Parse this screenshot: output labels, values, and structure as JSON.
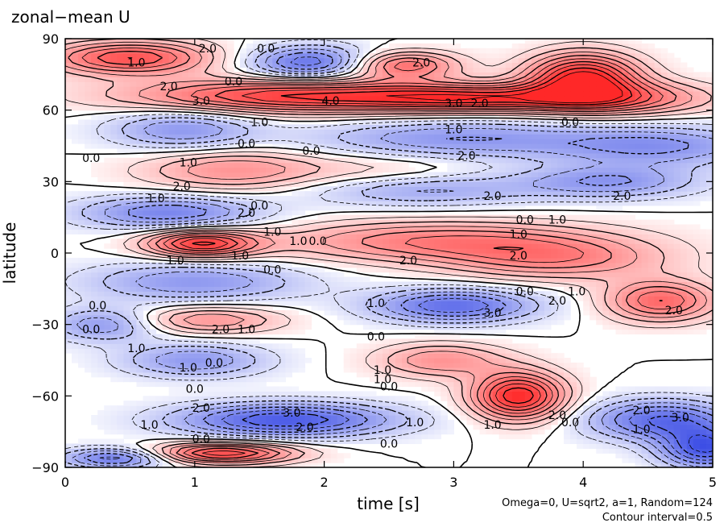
{
  "chart_data": {
    "type": "heatmap",
    "title": "zonal−mean U",
    "xlabel": "time [s]",
    "ylabel": "latitude",
    "xlim": [
      0,
      5
    ],
    "ylim": [
      -90,
      90
    ],
    "x_ticks": [
      0,
      1,
      2,
      3,
      4,
      5
    ],
    "x_tick_labels": [
      "0",
      "1",
      "2",
      "3",
      "4",
      "5"
    ],
    "y_ticks": [
      90,
      60,
      30,
      0,
      -30,
      -60,
      -90
    ],
    "y_tick_labels": [
      "90",
      "60",
      "30",
      "0",
      "−30",
      "−60",
      "−90"
    ],
    "annotations": [
      "Omega=0, U=sqrt2, a=1, Random=124",
      "Contour interval=0.5"
    ],
    "contour_interval": 0.5,
    "positive_color": "#d62020",
    "negative_color": "#1f2fd8",
    "features": [
      {
        "t": 0.5,
        "lat": 82,
        "value": 3.5,
        "st": 0.45,
        "sl": 5
      },
      {
        "t": 1.9,
        "lat": 80,
        "value": -3.0,
        "st": 0.35,
        "sl": 5
      },
      {
        "t": 2.6,
        "lat": 79,
        "value": 3.0,
        "st": 0.3,
        "sl": 4
      },
      {
        "t": 4.0,
        "lat": 74,
        "value": 4.5,
        "st": 0.3,
        "sl": 7
      },
      {
        "t": 1.8,
        "lat": 66,
        "value": 4.0,
        "st": 0.9,
        "sl": 5
      },
      {
        "t": 3.2,
        "lat": 65,
        "value": 3.2,
        "st": 0.6,
        "sl": 4
      },
      {
        "t": 4.3,
        "lat": 65,
        "value": 2.5,
        "st": 0.5,
        "sl": 5
      },
      {
        "t": 0.9,
        "lat": 52,
        "value": -2.0,
        "st": 0.4,
        "sl": 6
      },
      {
        "t": 3.0,
        "lat": 48,
        "value": -2.0,
        "st": 0.8,
        "sl": 6
      },
      {
        "t": 4.6,
        "lat": 45,
        "value": -2.0,
        "st": 0.6,
        "sl": 6
      },
      {
        "t": 1.3,
        "lat": 35,
        "value": 2.0,
        "st": 0.5,
        "sl": 6
      },
      {
        "t": 2.5,
        "lat": 33,
        "value": 1.0,
        "st": 0.5,
        "sl": 6
      },
      {
        "t": 2.7,
        "lat": 27,
        "value": -2.0,
        "st": 0.6,
        "sl": 5
      },
      {
        "t": 4.2,
        "lat": 30,
        "value": -2.0,
        "st": 0.5,
        "sl": 5
      },
      {
        "t": 0.8,
        "lat": 17,
        "value": -2.5,
        "st": 0.5,
        "sl": 5
      },
      {
        "t": 1.05,
        "lat": 4,
        "value": 4.0,
        "st": 0.3,
        "sl": 4
      },
      {
        "t": 2.9,
        "lat": 5,
        "value": 2.5,
        "st": 0.9,
        "sl": 6
      },
      {
        "t": 3.8,
        "lat": -3,
        "value": 2.0,
        "st": 0.6,
        "sl": 6
      },
      {
        "t": 1.0,
        "lat": -12,
        "value": -2.0,
        "st": 0.6,
        "sl": 6
      },
      {
        "t": 3.0,
        "lat": -22,
        "value": -3.0,
        "st": 0.45,
        "sl": 5
      },
      {
        "t": 4.6,
        "lat": -20,
        "value": 3.0,
        "st": 0.3,
        "sl": 6
      },
      {
        "t": 1.1,
        "lat": -28,
        "value": 2.0,
        "st": 0.4,
        "sl": 4
      },
      {
        "t": 0.3,
        "lat": -30,
        "value": -2.0,
        "st": 0.3,
        "sl": 5
      },
      {
        "t": 1.0,
        "lat": -45,
        "value": -2.0,
        "st": 0.4,
        "sl": 5
      },
      {
        "t": 2.9,
        "lat": -45,
        "value": 2.0,
        "st": 0.35,
        "sl": 5
      },
      {
        "t": 3.5,
        "lat": -60,
        "value": 4.5,
        "st": 0.25,
        "sl": 7
      },
      {
        "t": 1.7,
        "lat": -70,
        "value": -3.5,
        "st": 0.6,
        "sl": 5
      },
      {
        "t": 4.6,
        "lat": -70,
        "value": -3.0,
        "st": 0.4,
        "sl": 6
      },
      {
        "t": 4.95,
        "lat": -82,
        "value": -3.5,
        "st": 0.25,
        "sl": 6
      },
      {
        "t": 1.2,
        "lat": -84,
        "value": 4.0,
        "st": 0.4,
        "sl": 3
      },
      {
        "t": 0.4,
        "lat": -86,
        "value": -3.0,
        "st": 0.3,
        "sl": 3
      }
    ],
    "contour_labels": [
      {
        "t": 1.1,
        "lat": 86,
        "text": "2.0"
      },
      {
        "t": 1.55,
        "lat": 86,
        "text": "0.0"
      },
      {
        "t": 0.55,
        "lat": 80,
        "text": "1.0"
      },
      {
        "t": 2.75,
        "lat": 80,
        "text": "2.0"
      },
      {
        "t": 1.3,
        "lat": 72,
        "text": "0.0"
      },
      {
        "t": 0.8,
        "lat": 70,
        "text": "2.0"
      },
      {
        "t": 1.05,
        "lat": 64,
        "text": "3.0"
      },
      {
        "t": 2.05,
        "lat": 64,
        "text": "4.0"
      },
      {
        "t": 3.0,
        "lat": 63,
        "text": "3.0"
      },
      {
        "t": 3.2,
        "lat": 63,
        "text": "2.0"
      },
      {
        "t": 3.9,
        "lat": 55,
        "text": "0.0"
      },
      {
        "t": 1.5,
        "lat": 55,
        "text": "1.0"
      },
      {
        "t": 3.0,
        "lat": 52,
        "text": "1.0"
      },
      {
        "t": 1.4,
        "lat": 46,
        "text": "0.0"
      },
      {
        "t": 1.9,
        "lat": 43,
        "text": "0.0"
      },
      {
        "t": 0.2,
        "lat": 40,
        "text": "0.0"
      },
      {
        "t": 0.95,
        "lat": 38,
        "text": "1.0"
      },
      {
        "t": 3.1,
        "lat": 41,
        "text": "2.0"
      },
      {
        "t": 0.9,
        "lat": 28,
        "text": "2.0"
      },
      {
        "t": 0.7,
        "lat": 23,
        "text": "1.0"
      },
      {
        "t": 3.3,
        "lat": 24,
        "text": "2.0"
      },
      {
        "t": 4.3,
        "lat": 24,
        "text": "2.0"
      },
      {
        "t": 1.5,
        "lat": 20,
        "text": "0.0"
      },
      {
        "t": 1.4,
        "lat": 17,
        "text": "2.0"
      },
      {
        "t": 3.55,
        "lat": 14,
        "text": "0.0"
      },
      {
        "t": 3.8,
        "lat": 14,
        "text": "1.0"
      },
      {
        "t": 3.5,
        "lat": 8,
        "text": "1.0"
      },
      {
        "t": 1.6,
        "lat": 9,
        "text": "1.0"
      },
      {
        "t": 1.8,
        "lat": 5,
        "text": "1.0"
      },
      {
        "t": 1.95,
        "lat": 5,
        "text": "0.0"
      },
      {
        "t": 0.85,
        "lat": -3,
        "text": "1.0"
      },
      {
        "t": 1.35,
        "lat": -1,
        "text": "1.0"
      },
      {
        "t": 2.65,
        "lat": -3,
        "text": "2.0"
      },
      {
        "t": 3.5,
        "lat": -1,
        "text": "2.0"
      },
      {
        "t": 1.6,
        "lat": -7,
        "text": "0.0"
      },
      {
        "t": 3.55,
        "lat": -16,
        "text": "0.0"
      },
      {
        "t": 3.95,
        "lat": -16,
        "text": "1.0"
      },
      {
        "t": 3.8,
        "lat": -20,
        "text": "2.0"
      },
      {
        "t": 2.4,
        "lat": -21,
        "text": "1.0"
      },
      {
        "t": 3.3,
        "lat": -25,
        "text": "3.0"
      },
      {
        "t": 4.7,
        "lat": -24,
        "text": "2.0"
      },
      {
        "t": 0.25,
        "lat": -22,
        "text": "0.0"
      },
      {
        "t": 0.2,
        "lat": -32,
        "text": "0.0"
      },
      {
        "t": 1.2,
        "lat": -32,
        "text": "2.0"
      },
      {
        "t": 1.4,
        "lat": -32,
        "text": "1.0"
      },
      {
        "t": 2.4,
        "lat": -35,
        "text": "0.0"
      },
      {
        "t": 0.55,
        "lat": -40,
        "text": "1.0"
      },
      {
        "t": 0.95,
        "lat": -48,
        "text": "1.0"
      },
      {
        "t": 1.15,
        "lat": -46,
        "text": "0.0"
      },
      {
        "t": 2.45,
        "lat": -49,
        "text": "1.0"
      },
      {
        "t": 2.45,
        "lat": -53,
        "text": "1.0"
      },
      {
        "t": 2.5,
        "lat": -56,
        "text": "0.0"
      },
      {
        "t": 1.0,
        "lat": -57,
        "text": "0.0"
      },
      {
        "t": 1.05,
        "lat": -65,
        "text": "2.0"
      },
      {
        "t": 1.75,
        "lat": -67,
        "text": "3.0"
      },
      {
        "t": 1.85,
        "lat": -73,
        "text": "2.0"
      },
      {
        "t": 0.65,
        "lat": -72,
        "text": "1.0"
      },
      {
        "t": 2.7,
        "lat": -71,
        "text": "1.0"
      },
      {
        "t": 3.3,
        "lat": -72,
        "text": "1.0"
      },
      {
        "t": 3.8,
        "lat": -68,
        "text": "2.0"
      },
      {
        "t": 3.9,
        "lat": -71,
        "text": "0.0"
      },
      {
        "t": 4.45,
        "lat": -74,
        "text": "1.0"
      },
      {
        "t": 4.45,
        "lat": -66,
        "text": "2.0"
      },
      {
        "t": 4.75,
        "lat": -69,
        "text": "3.0"
      },
      {
        "t": 1.05,
        "lat": -78,
        "text": "0.0"
      },
      {
        "t": 2.5,
        "lat": -80,
        "text": "0.0"
      }
    ]
  }
}
